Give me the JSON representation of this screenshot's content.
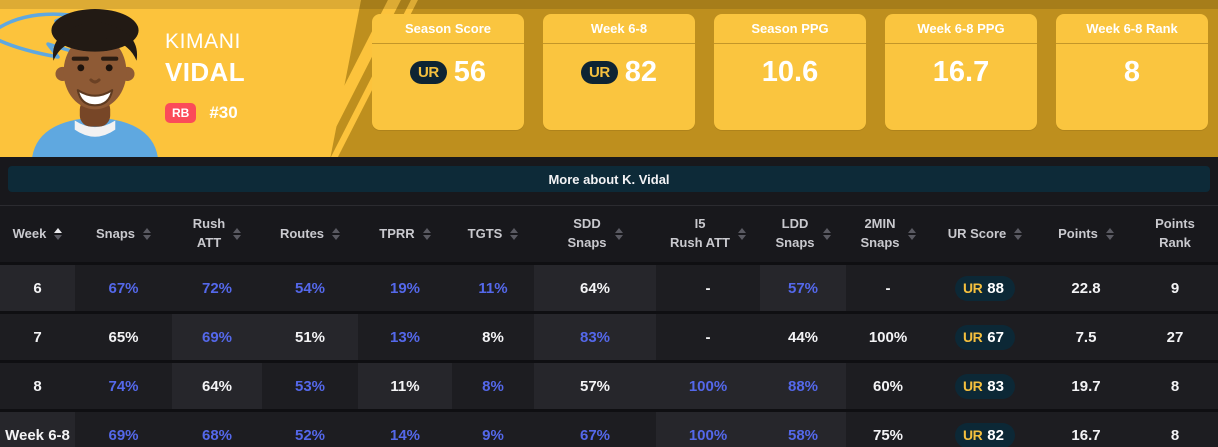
{
  "player": {
    "first_name": "KIMANI",
    "last_name": "VIDAL",
    "position": "RB",
    "jersey_number": "#30"
  },
  "ur_brand": {
    "logo_text": "UR"
  },
  "stat_cards": [
    {
      "label": "Season Score",
      "value": "56",
      "ur_badge": true
    },
    {
      "label": "Week 6-8",
      "value": "82",
      "ur_badge": true
    },
    {
      "label": "Season PPG",
      "value": "10.6",
      "ur_badge": false
    },
    {
      "label": "Week 6-8 PPG",
      "value": "16.7",
      "ur_badge": false
    },
    {
      "label": "Week 6-8 Rank",
      "value": "8",
      "ur_badge": false
    }
  ],
  "banner": {
    "label": "More about K. Vidal"
  },
  "table": {
    "columns": [
      {
        "key": "week",
        "label": "Week",
        "sort": "asc"
      },
      {
        "key": "snaps",
        "label": "Snaps",
        "sort": "none"
      },
      {
        "key": "rush-att",
        "label": "Rush",
        "label2": "ATT",
        "sort": "none"
      },
      {
        "key": "routes",
        "label": "Routes",
        "sort": "none"
      },
      {
        "key": "tprr",
        "label": "TPRR",
        "sort": "none"
      },
      {
        "key": "tgts",
        "label": "TGTS",
        "sort": "none"
      },
      {
        "key": "sdd-snaps",
        "label": "SDD",
        "label2": "Snaps",
        "sort": "none"
      },
      {
        "key": "i5-rush-att",
        "label": "I5",
        "label2": "Rush ATT",
        "sort": "none"
      },
      {
        "key": "ldd-snaps",
        "label": "LDD",
        "label2": "Snaps",
        "sort": "none"
      },
      {
        "key": "2min-snaps",
        "label": "2MIN",
        "label2": "Snaps",
        "sort": "none"
      },
      {
        "key": "ur-score",
        "label": "UR Score",
        "sort": "none"
      },
      {
        "key": "points",
        "label": "Points",
        "sort": "none"
      },
      {
        "key": "points-rank",
        "label": "Points",
        "label2": "Rank"
      }
    ],
    "rows": [
      {
        "key": "week-6",
        "cells": [
          {
            "t": "6",
            "shade": true
          },
          {
            "t": "67%",
            "link": true
          },
          {
            "t": "72%",
            "link": true
          },
          {
            "t": "54%",
            "link": true
          },
          {
            "t": "19%",
            "link": true
          },
          {
            "t": "11%",
            "link": true
          },
          {
            "t": "64%",
            "shade": true
          },
          {
            "t": "-"
          },
          {
            "t": "57%",
            "link": true,
            "shade": true
          },
          {
            "t": "-"
          },
          {
            "t": "88",
            "ur": true
          },
          {
            "t": "22.8"
          },
          {
            "t": "9"
          }
        ]
      },
      {
        "key": "week-7",
        "cells": [
          {
            "t": "7"
          },
          {
            "t": "65%"
          },
          {
            "t": "69%",
            "link": true,
            "shade": true
          },
          {
            "t": "51%",
            "shade": true
          },
          {
            "t": "13%",
            "link": true
          },
          {
            "t": "8%"
          },
          {
            "t": "83%",
            "link": true,
            "shade": true
          },
          {
            "t": "-"
          },
          {
            "t": "44%"
          },
          {
            "t": "100%"
          },
          {
            "t": "67",
            "ur": true
          },
          {
            "t": "7.5"
          },
          {
            "t": "27"
          }
        ]
      },
      {
        "key": "week-8",
        "cells": [
          {
            "t": "8"
          },
          {
            "t": "74%",
            "link": true
          },
          {
            "t": "64%",
            "shade": true
          },
          {
            "t": "53%",
            "link": true
          },
          {
            "t": "11%",
            "shade": true
          },
          {
            "t": "8%",
            "link": true
          },
          {
            "t": "57%",
            "shade": true
          },
          {
            "t": "100%",
            "link": true,
            "shade": true
          },
          {
            "t": "88%",
            "link": true,
            "shade": true
          },
          {
            "t": "60%"
          },
          {
            "t": "83",
            "ur": true
          },
          {
            "t": "19.7"
          },
          {
            "t": "8"
          }
        ]
      },
      {
        "key": "week-6-8",
        "cells": [
          {
            "t": "Week 6-8",
            "shade": true
          },
          {
            "t": "69%",
            "link": true
          },
          {
            "t": "68%",
            "link": true
          },
          {
            "t": "52%",
            "link": true
          },
          {
            "t": "14%",
            "link": true
          },
          {
            "t": "9%",
            "link": true
          },
          {
            "t": "67%",
            "link": true
          },
          {
            "t": "100%",
            "link": true,
            "shade": true
          },
          {
            "t": "58%",
            "link": true,
            "shade": true
          },
          {
            "t": "75%"
          },
          {
            "t": "82",
            "ur": true
          },
          {
            "t": "16.7"
          },
          {
            "t": "8"
          }
        ]
      }
    ]
  },
  "colors": {
    "accent_yellow": "#FCC33C",
    "gold_band": "#BE8F1E",
    "card_yellow": "#FAC53F",
    "banner_teal": "#0D2A38",
    "link_blue": "#5468EA",
    "position_red": "#FB4B59",
    "bolt_blue": "#5FA8E0",
    "ur_badge_navy": "#0C2836",
    "ur_yellow": "#F5C03E"
  }
}
